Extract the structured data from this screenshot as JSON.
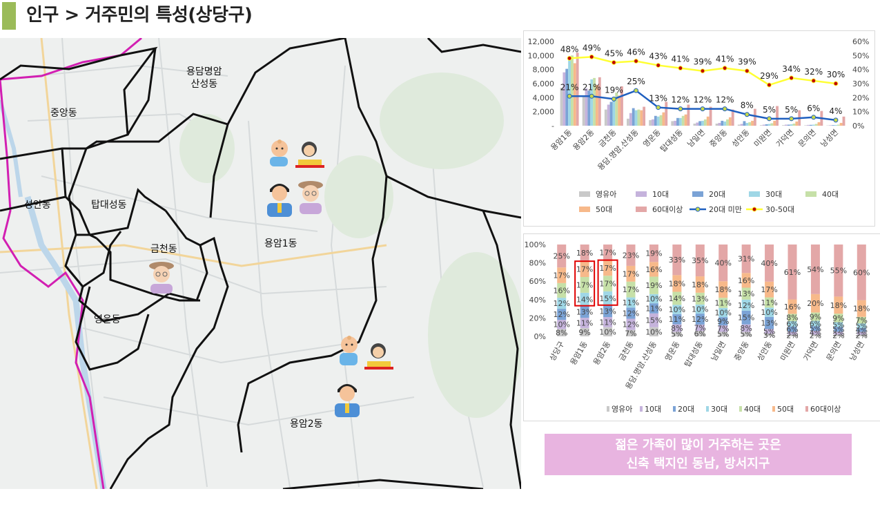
{
  "page": {
    "title": "인구 > 거주민의 특성(상당구)",
    "accent_color": "#9bbb59"
  },
  "map": {
    "dongs": [
      {
        "name": "용담명암\n산성동"
      },
      {
        "name": "중앙동"
      },
      {
        "name": "성안동"
      },
      {
        "name": "탑대성동"
      },
      {
        "name": "금천동"
      },
      {
        "name": "용암1동"
      },
      {
        "name": "영운동"
      },
      {
        "name": "용암2동"
      }
    ],
    "icons": [
      "baby-icon",
      "student-icon",
      "man-icon",
      "elderly-icon",
      "elderly-icon",
      "baby-icon",
      "student-icon",
      "man-icon"
    ]
  },
  "chart_data": [
    {
      "type": "bar",
      "categories": [
        "용암1동",
        "용암2동",
        "금천동",
        "용담.명암.산성동",
        "영운동",
        "탑대성동",
        "남일면",
        "중앙동",
        "성안동",
        "미원면",
        "가덕면",
        "문의면",
        "낭성면"
      ],
      "series": [
        {
          "name": "영유아",
          "color": "#c9c9c9",
          "values": [
            5400,
            4100,
            2300,
            1000,
            800,
            650,
            300,
            300,
            150,
            80,
            80,
            60,
            40
          ]
        },
        {
          "name": "10대",
          "color": "#c5b3dc",
          "values": [
            7600,
            5300,
            3000,
            1800,
            900,
            700,
            450,
            400,
            250,
            150,
            150,
            110,
            70
          ]
        },
        {
          "name": "20대",
          "color": "#7ba3d6",
          "values": [
            8100,
            5000,
            3400,
            2500,
            1400,
            1100,
            650,
            700,
            650,
            200,
            150,
            120,
            80
          ]
        },
        {
          "name": "30대",
          "color": "#9fd7e6",
          "values": [
            9500,
            6600,
            4100,
            2200,
            1300,
            1100,
            700,
            600,
            400,
            250,
            200,
            150,
            100
          ]
        },
        {
          "name": "40대",
          "color": "#c6e0a8",
          "values": [
            10000,
            6800,
            4700,
            2300,
            1500,
            1400,
            900,
            900,
            500,
            350,
            300,
            250,
            150
          ]
        },
        {
          "name": "50대",
          "color": "#f7b98a",
          "values": [
            8900,
            5800,
            4300,
            2200,
            1900,
            1600,
            1300,
            1200,
            700,
            700,
            600,
            500,
            400
          ]
        },
        {
          "name": "60대이상",
          "color": "#e3a7a7",
          "values": [
            10400,
            6900,
            5600,
            2700,
            3400,
            3000,
            2700,
            2300,
            2400,
            2800,
            2200,
            2100,
            1300
          ]
        }
      ],
      "lines": [
        {
          "name": "20대 미만",
          "color": "#1f5fbf",
          "marker": "#c8d94a",
          "values": [
            21,
            21,
            19,
            25,
            13,
            12,
            12,
            12,
            8,
            5,
            5,
            6,
            4
          ]
        },
        {
          "name": "30-50대",
          "color": "#ffff33",
          "marker": "#c00000",
          "values": [
            48,
            49,
            45,
            46,
            43,
            41,
            39,
            41,
            39,
            29,
            34,
            32,
            30
          ]
        }
      ],
      "ylim": [
        0,
        12000
      ],
      "yticks": [
        "-",
        "2,000",
        "4,000",
        "6,000",
        "8,000",
        "10,000",
        "12,000"
      ],
      "y2lim": [
        0,
        60
      ],
      "y2ticks": [
        "0%",
        "10%",
        "20%",
        "30%",
        "40%",
        "50%",
        "60%"
      ],
      "line_labels": {
        "30-50대": [
          "48%",
          "49%",
          "45%",
          "46%",
          "43%",
          "41%",
          "39%",
          "41%",
          "39%",
          "29%",
          "34%",
          "32%",
          "30%"
        ],
        "20대 미만": [
          "21%",
          "21%",
          "19%",
          "25%",
          "13%",
          "12%",
          "12%",
          "12%",
          "8%",
          "5%",
          "5%",
          "6%",
          "4%"
        ]
      },
      "legend": {
        "placement": "bottom",
        "items": [
          "영유아",
          "10대",
          "20대",
          "30대",
          "40대",
          "50대",
          "60대이상",
          "20대 미만",
          "30-50대"
        ]
      }
    },
    {
      "type": "bar",
      "stacked": "percent",
      "categories": [
        "상당구",
        "용암1동",
        "용암2동",
        "금천동",
        "용담.명암.산성동",
        "영운동",
        "탑대성동",
        "남일면",
        "중앙동",
        "성안동",
        "미원면",
        "가덕면",
        "문의면",
        "낭성면"
      ],
      "series": [
        {
          "name": "영유아",
          "color": "#c9c9c9",
          "values": [
            8,
            9,
            10,
            7,
            10,
            5,
            6,
            5,
            5,
            3,
            2,
            2,
            2,
            2
          ],
          "labels": [
            "8%",
            "9%",
            "10%",
            "7%",
            "10%",
            "5%",
            "6%",
            "5%",
            "5%",
            "3%",
            "2%",
            "2%",
            "2%",
            "2%"
          ]
        },
        {
          "name": "10대",
          "color": "#c5b3dc",
          "values": [
            10,
            11,
            11,
            12,
            15,
            8,
            7,
            7,
            8,
            5,
            3,
            4,
            3,
            3
          ],
          "labels": [
            "10%",
            "11%",
            "11%",
            "12%",
            "15%",
            "8%",
            "7%",
            "7%",
            "8%",
            "5%",
            "3%",
            "4%",
            "3%",
            "3%"
          ]
        },
        {
          "name": "20대",
          "color": "#7ba3d6",
          "values": [
            12,
            13,
            13,
            12,
            11,
            11,
            12,
            9,
            15,
            13,
            6,
            5,
            5,
            4
          ],
          "labels": [
            "12%",
            "13%",
            "13%",
            "12%",
            "11%",
            "11%",
            "12%",
            "9%",
            "15%",
            "13%",
            "6%",
            "5%",
            "5%",
            "4%"
          ]
        },
        {
          "name": "30대",
          "color": "#9fd7e6",
          "values": [
            12,
            14,
            15,
            11,
            10,
            10,
            10,
            10,
            12,
            10,
            6,
            6,
            5,
            5
          ],
          "labels": [
            "12%",
            "14%",
            "15%",
            "11%",
            "10%",
            "10%",
            "10%",
            "10%",
            "12%",
            "10%",
            "6%",
            "6%",
            "5%",
            "5%"
          ]
        },
        {
          "name": "40대",
          "color": "#c6e0a8",
          "values": [
            16,
            17,
            17,
            17,
            19,
            14,
            13,
            11,
            13,
            11,
            8,
            9,
            9,
            7
          ],
          "labels": [
            "16%",
            "17%",
            "17%",
            "17%",
            "19%",
            "14%",
            "13%",
            "11%",
            "13%",
            "11%",
            "8%",
            "9%",
            "9%",
            "7%"
          ]
        },
        {
          "name": "50대",
          "color": "#f7b98a",
          "values": [
            17,
            17,
            17,
            17,
            16,
            18,
            18,
            18,
            16,
            17,
            16,
            20,
            18,
            18
          ],
          "labels": [
            "17%",
            "17%",
            "17%",
            "17%",
            "16%",
            "18%",
            "18%",
            "18%",
            "16%",
            "17%",
            "16%",
            "20%",
            "18%",
            "18%"
          ]
        },
        {
          "name": "60대이상",
          "color": "#e3a7a7",
          "values": [
            25,
            18,
            17,
            23,
            19,
            33,
            35,
            40,
            31,
            40,
            61,
            54,
            55,
            60
          ],
          "labels": [
            "25%",
            "18%",
            "17%",
            "23%",
            "19%",
            "33%",
            "35%",
            "40%",
            "31%",
            "40%",
            "61%",
            "54%",
            "55%",
            "60%"
          ]
        }
      ],
      "ylim": [
        0,
        100
      ],
      "yticks": [
        "0%",
        "20%",
        "40%",
        "60%",
        "80%",
        "100%"
      ],
      "highlight_categories": [
        "용암1동",
        "용암2동"
      ],
      "highlight_color": "#e00000",
      "legend": {
        "placement": "bottom",
        "items": [
          "영유아",
          "10대",
          "20대",
          "30대",
          "40대",
          "50대",
          "60대이상"
        ]
      }
    }
  ],
  "callout": {
    "line1": "젊은 가족이 많이 거주하는 곳은",
    "line2": "신축 택지인 동남, 방서지구",
    "color": "#e8b4e0"
  }
}
